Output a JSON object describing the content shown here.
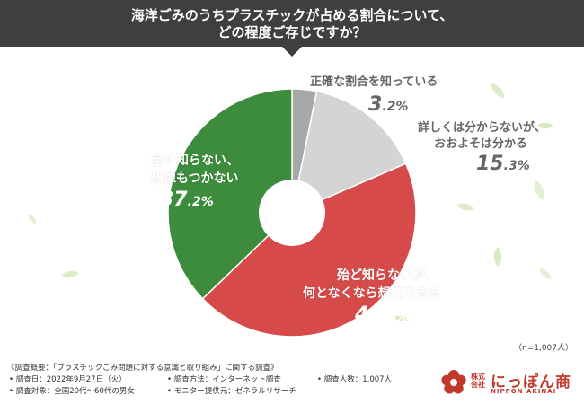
{
  "header": {
    "title_line1": "海洋ごみのうちプラスチックが占める割合について、",
    "title_line2": "どの程度ご存じですか？"
  },
  "chart_data": {
    "type": "pie",
    "variant": "donut",
    "start": "12 o'clock, clockwise",
    "slices": [
      {
        "label": "正確な割合を知っている",
        "value": 3.2,
        "value_int": "3",
        "value_dec": ".2",
        "unit": "%",
        "color": "#a8a8a8"
      },
      {
        "label": "詳しくは分からないが、おおよそは分かる",
        "label_line1": "詳しくは分からないが、",
        "label_line2": "おおよそは分かる",
        "value": 15.3,
        "value_int": "15",
        "value_dec": ".3",
        "unit": "%",
        "color": "#d4d4d4"
      },
      {
        "label": "殆ど知らないが、何となくなら想像できる",
        "label_line1": "殆ど知らないが、",
        "label_line2": "何となくなら想像できる",
        "value": 44.3,
        "value_int": "44",
        "value_dec": ".3",
        "unit": "%",
        "color": "#d64a4a"
      },
      {
        "label": "全く知らない、想像もつかない",
        "label_line1": "全く知らない、",
        "label_line2": "想像もつかない",
        "value": 37.2,
        "value_int": "37",
        "value_dec": ".2",
        "unit": "%",
        "color": "#3d8c3d"
      }
    ],
    "sample_size": "（n=1,007人）"
  },
  "footer": {
    "summary": "《調査概要：「プラスチックごみ問題に対する意識と取り組み」に関する調査》",
    "date": "• 調査日：2022年9月27日（火）",
    "method": "• 調査方法：インターネット調査",
    "count": "• 調査人数：1,007人",
    "target": "• 調査対象：全国20代〜60代の男女",
    "provider": "• モニター提供元：ゼネラルリサーチ"
  },
  "logo": {
    "kabushiki": "株式会社",
    "name": "にっぽん商",
    "english": "NIPPON AKINAI",
    "colors": {
      "brand": "#c0392b"
    }
  }
}
